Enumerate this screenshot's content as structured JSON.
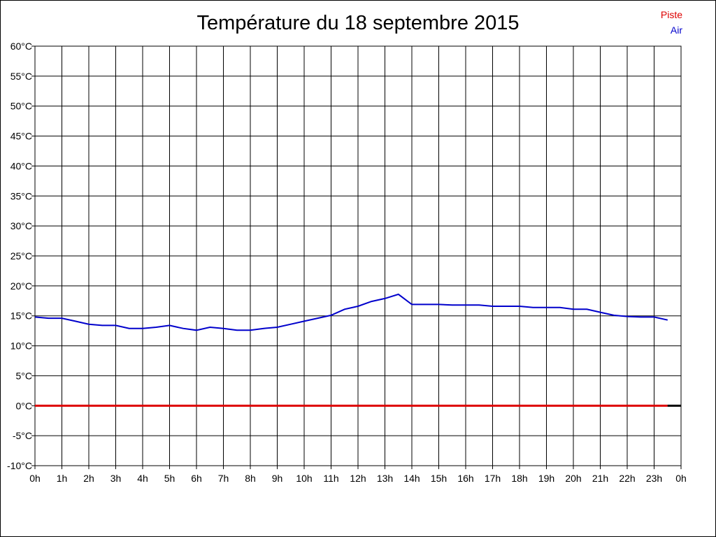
{
  "chart_data": {
    "type": "line",
    "title": "Température du 18 septembre 2015",
    "xlabel": "",
    "ylabel": "",
    "x_ticks": [
      "0h",
      "1h",
      "2h",
      "3h",
      "4h",
      "5h",
      "6h",
      "7h",
      "8h",
      "9h",
      "10h",
      "11h",
      "12h",
      "13h",
      "14h",
      "15h",
      "16h",
      "17h",
      "18h",
      "19h",
      "20h",
      "21h",
      "22h",
      "23h",
      "0h"
    ],
    "y_ticks": [
      "60°C",
      "55°C",
      "50°C",
      "45°C",
      "40°C",
      "35°C",
      "30°C",
      "25°C",
      "20°C",
      "15°C",
      "10°C",
      "5°C",
      "0°C",
      "-5°C",
      "-10°C"
    ],
    "xlim": [
      0,
      24
    ],
    "ylim": [
      -10,
      60
    ],
    "grid": true,
    "legend_placement": "top-right",
    "series": [
      {
        "name": "Piste",
        "color": "#dd0000",
        "x": [
          0,
          23.5
        ],
        "y": [
          0,
          0
        ]
      },
      {
        "name": "Air",
        "color": "#0000cc",
        "x": [
          0,
          0.5,
          1,
          1.5,
          2,
          2.5,
          3,
          3.5,
          4,
          4.5,
          5,
          5.5,
          6,
          6.5,
          7,
          7.5,
          8,
          8.5,
          9,
          9.5,
          10,
          10.5,
          11,
          11.5,
          12,
          12.5,
          13,
          13.5,
          14,
          14.5,
          15,
          15.5,
          16,
          16.5,
          17,
          17.5,
          18,
          18.5,
          19,
          19.5,
          20,
          20.5,
          21,
          21.5,
          22,
          22.5,
          23,
          23.5
        ],
        "y": [
          14.8,
          14.6,
          14.6,
          14.1,
          13.6,
          13.4,
          13.4,
          12.9,
          12.9,
          13.1,
          13.4,
          12.9,
          12.6,
          13.1,
          12.9,
          12.6,
          12.6,
          12.9,
          13.1,
          13.6,
          14.1,
          14.6,
          15.1,
          16.1,
          16.6,
          17.4,
          17.9,
          18.6,
          16.9,
          16.9,
          16.9,
          16.8,
          16.8,
          16.8,
          16.6,
          16.6,
          16.6,
          16.4,
          16.4,
          16.4,
          16.1,
          16.1,
          15.6,
          15.1,
          14.9,
          14.8,
          14.8,
          14.3
        ]
      }
    ],
    "baseline": {
      "y": 0,
      "x_from": 23.5,
      "x_to": 24,
      "color": "#000000"
    }
  }
}
